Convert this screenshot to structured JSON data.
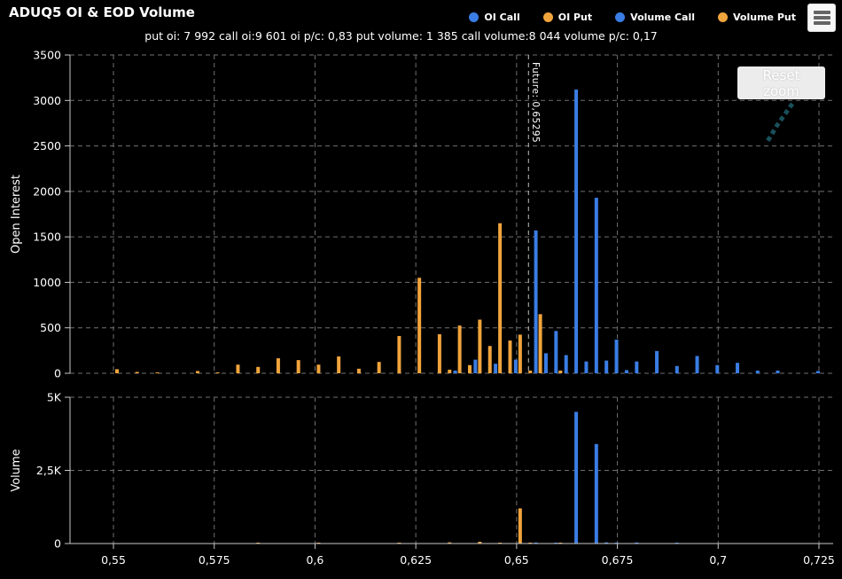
{
  "header": {
    "title": "ADUQ5 OI & EOD Volume"
  },
  "subtitle": "put oi: 7 992 call oi:9 601 oi p/c: 0,83 put volume: 1 385 call volume:8 044 volume p/c: 0,17",
  "legend": {
    "items": [
      {
        "label": "OI Call",
        "color": "#3a7de4"
      },
      {
        "label": "OI Put",
        "color": "#f0a43c"
      },
      {
        "label": "Volume Call",
        "color": "#3a7de4"
      },
      {
        "label": "Volume Put",
        "color": "#f0a43c"
      }
    ]
  },
  "buttons": {
    "reset_zoom": "Reset zoom",
    "menu_icon": "hamburger-icon"
  },
  "colors": {
    "background": "#000000",
    "text": "#ffffff",
    "grid": "#707070",
    "axis": "#c8c8c8",
    "call_blue": "#3a7de4",
    "put_orange": "#f0a43c",
    "future_line": "#c0c0c0",
    "reset_button_bg": "#ececec",
    "menu_bg": "#f7f7f7",
    "squiggle_teal": "#1b5560"
  },
  "chart_data": {
    "type": "bar",
    "title": "ADUQ5 OI & EOD Volume",
    "x_axis": {
      "range": [
        0.539,
        0.7285
      ],
      "ticks": [
        {
          "v": 0.55,
          "label": "0,55"
        },
        {
          "v": 0.575,
          "label": "0,575"
        },
        {
          "v": 0.6,
          "label": "0,6"
        },
        {
          "v": 0.625,
          "label": "0,625"
        },
        {
          "v": 0.65,
          "label": "0,65"
        },
        {
          "v": 0.675,
          "label": "0,675"
        },
        {
          "v": 0.7,
          "label": "0,7"
        },
        {
          "v": 0.725,
          "label": "0,725"
        }
      ]
    },
    "future_line": {
      "label": "Future: 0,65295",
      "value": 0.65295
    },
    "panels": [
      {
        "name": "open_interest",
        "ylabel": "Open Interest",
        "ylim": [
          0,
          3500
        ],
        "grid": true,
        "y_ticks": [
          {
            "v": 0,
            "label": "0"
          },
          {
            "v": 500,
            "label": "500"
          },
          {
            "v": 1000,
            "label": "1000"
          },
          {
            "v": 1500,
            "label": "1500"
          },
          {
            "v": 2000,
            "label": "2000"
          },
          {
            "v": 2500,
            "label": "2500"
          },
          {
            "v": 3000,
            "label": "3000"
          },
          {
            "v": 3500,
            "label": "3500"
          }
        ],
        "series": [
          {
            "name": "OI Call",
            "color_key": "call_blue",
            "points": [
              [
                0.635,
                30
              ],
              [
                0.64,
                150
              ],
              [
                0.645,
                105
              ],
              [
                0.65,
                150
              ],
              [
                0.655,
                1570
              ],
              [
                0.6575,
                220
              ],
              [
                0.66,
                465
              ],
              [
                0.6625,
                200
              ],
              [
                0.665,
                3120
              ],
              [
                0.6675,
                130
              ],
              [
                0.67,
                1930
              ],
              [
                0.6725,
                140
              ],
              [
                0.675,
                370
              ],
              [
                0.6775,
                35
              ],
              [
                0.68,
                130
              ],
              [
                0.685,
                245
              ],
              [
                0.69,
                80
              ],
              [
                0.695,
                190
              ],
              [
                0.7,
                90
              ],
              [
                0.705,
                115
              ],
              [
                0.71,
                30
              ],
              [
                0.715,
                30
              ],
              [
                0.725,
                25
              ]
            ]
          },
          {
            "name": "OI Put",
            "color_key": "put_orange",
            "points": [
              [
                0.55,
                45
              ],
              [
                0.555,
                15
              ],
              [
                0.56,
                10
              ],
              [
                0.57,
                25
              ],
              [
                0.575,
                10
              ],
              [
                0.58,
                95
              ],
              [
                0.585,
                70
              ],
              [
                0.59,
                165
              ],
              [
                0.595,
                145
              ],
              [
                0.6,
                95
              ],
              [
                0.605,
                185
              ],
              [
                0.61,
                50
              ],
              [
                0.615,
                125
              ],
              [
                0.62,
                410
              ],
              [
                0.625,
                1050
              ],
              [
                0.63,
                430
              ],
              [
                0.6325,
                40
              ],
              [
                0.635,
                525
              ],
              [
                0.6375,
                90
              ],
              [
                0.64,
                590
              ],
              [
                0.6425,
                300
              ],
              [
                0.645,
                1650
              ],
              [
                0.6475,
                360
              ],
              [
                0.65,
                425
              ],
              [
                0.6525,
                30
              ],
              [
                0.655,
                650
              ],
              [
                0.66,
                30
              ]
            ]
          }
        ]
      },
      {
        "name": "volume",
        "ylabel": "Volume",
        "ylim": [
          0,
          5000
        ],
        "grid": true,
        "y_ticks": [
          {
            "v": 0,
            "label": "0"
          },
          {
            "v": 2500,
            "label": "2,5K"
          },
          {
            "v": 5000,
            "label": "5K"
          }
        ],
        "series": [
          {
            "name": "Volume Call",
            "color_key": "call_blue",
            "points": [
              [
                0.655,
                35
              ],
              [
                0.66,
                25
              ],
              [
                0.665,
                4500
              ],
              [
                0.67,
                3400
              ],
              [
                0.6725,
                40
              ],
              [
                0.675,
                30
              ],
              [
                0.68,
                35
              ],
              [
                0.69,
                30
              ]
            ]
          },
          {
            "name": "Volume Put",
            "color_key": "put_orange",
            "points": [
              [
                0.585,
                30
              ],
              [
                0.6,
                25
              ],
              [
                0.62,
                30
              ],
              [
                0.6325,
                40
              ],
              [
                0.64,
                60
              ],
              [
                0.645,
                30
              ],
              [
                0.65,
                1200
              ],
              [
                0.6525,
                25
              ],
              [
                0.66,
                20
              ]
            ]
          }
        ]
      }
    ]
  }
}
